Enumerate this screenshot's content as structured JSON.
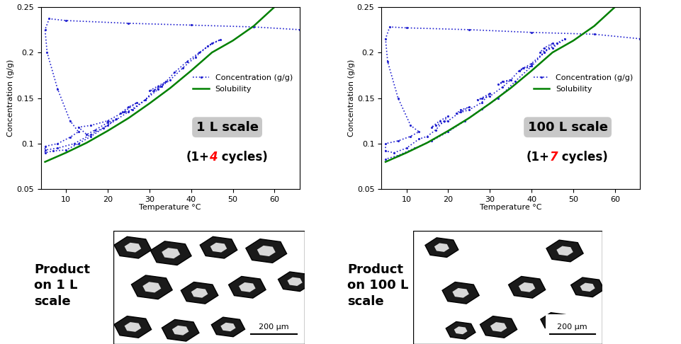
{
  "chart_data": [
    {
      "type": "line",
      "xlabel": "Temperature °C",
      "ylabel": "Concentration (g/g)",
      "xlim": [
        4,
        66
      ],
      "ylim": [
        0.05,
        0.25
      ],
      "xticks": [
        10,
        20,
        30,
        40,
        50,
        60
      ],
      "yticks": [
        0.05,
        0.1,
        0.15,
        0.2,
        0.25
      ],
      "legend": "center right",
      "annotations": [
        "1 L scale"
      ],
      "annotation_parts": [
        "(1+",
        "4",
        " cycles)"
      ],
      "series": [
        {
          "name": "Concentration (g/g)",
          "color": "#2020d0",
          "line_style": "dotted",
          "marker": "dot",
          "x": [
            66,
            55,
            40,
            25,
            10,
            6,
            5,
            5.5,
            8,
            11,
            13,
            11,
            8,
            5,
            5,
            7,
            10,
            13,
            16,
            19,
            22,
            20,
            17,
            15,
            13,
            16,
            20,
            24,
            27,
            25,
            23,
            26,
            29,
            31,
            34,
            32,
            30,
            32,
            35,
            38,
            41,
            44,
            47,
            45,
            42,
            39,
            36,
            33,
            29,
            25,
            20,
            16,
            12,
            8,
            5
          ],
          "values": [
            0.225,
            0.228,
            0.23,
            0.232,
            0.235,
            0.237,
            0.225,
            0.2,
            0.16,
            0.125,
            0.113,
            0.107,
            0.1,
            0.097,
            0.09,
            0.092,
            0.093,
            0.1,
            0.108,
            0.117,
            0.127,
            0.123,
            0.115,
            0.11,
            0.118,
            0.12,
            0.125,
            0.135,
            0.145,
            0.14,
            0.133,
            0.137,
            0.148,
            0.158,
            0.168,
            0.163,
            0.158,
            0.16,
            0.17,
            0.183,
            0.195,
            0.207,
            0.214,
            0.21,
            0.2,
            0.19,
            0.178,
            0.163,
            0.148,
            0.135,
            0.12,
            0.11,
            0.1,
            0.095,
            0.093
          ]
        },
        {
          "name": "Solubility",
          "color": "#008000",
          "line_style": "solid",
          "x": [
            5,
            10,
            15,
            20,
            25,
            30,
            35,
            40,
            45,
            50,
            55,
            60
          ],
          "values": [
            0.08,
            0.09,
            0.101,
            0.114,
            0.128,
            0.144,
            0.161,
            0.18,
            0.2,
            0.213,
            0.229,
            0.25
          ]
        }
      ]
    },
    {
      "type": "line",
      "xlabel": "Temperature °C",
      "ylabel": "Concentration (g/g)",
      "xlim": [
        4,
        66
      ],
      "ylim": [
        0.05,
        0.25
      ],
      "xticks": [
        10,
        20,
        30,
        40,
        50,
        60
      ],
      "yticks": [
        0.05,
        0.1,
        0.15,
        0.2,
        0.25
      ],
      "legend": "center right",
      "annotations": [
        "100 L scale"
      ],
      "annotation_parts": [
        "(1+",
        "7",
        " cycles)"
      ],
      "series": [
        {
          "name": "Concentration (g/g)",
          "color": "#2020d0",
          "line_style": "dotted",
          "marker": "dot",
          "x": [
            66,
            55,
            40,
            25,
            10,
            6,
            5,
            5.5,
            8,
            11,
            13,
            11,
            8,
            5,
            5,
            7,
            10,
            13,
            15,
            17,
            19,
            20,
            18,
            16,
            17,
            20,
            23,
            25,
            23,
            22,
            25,
            28,
            30,
            28,
            27,
            30,
            33,
            35,
            33,
            32,
            35,
            37,
            40,
            38,
            37,
            40,
            43,
            45,
            43,
            42,
            45,
            48,
            46,
            43,
            40,
            36,
            32,
            28,
            24,
            20,
            16,
            12,
            8,
            5
          ],
          "values": [
            0.215,
            0.22,
            0.222,
            0.225,
            0.227,
            0.228,
            0.215,
            0.19,
            0.15,
            0.12,
            0.113,
            0.108,
            0.103,
            0.1,
            0.092,
            0.09,
            0.095,
            0.105,
            0.108,
            0.115,
            0.125,
            0.13,
            0.125,
            0.118,
            0.12,
            0.125,
            0.135,
            0.14,
            0.137,
            0.133,
            0.137,
            0.145,
            0.155,
            0.15,
            0.148,
            0.152,
            0.162,
            0.17,
            0.168,
            0.165,
            0.17,
            0.18,
            0.185,
            0.183,
            0.18,
            0.188,
            0.2,
            0.21,
            0.205,
            0.2,
            0.205,
            0.215,
            0.21,
            0.2,
            0.185,
            0.168,
            0.15,
            0.138,
            0.125,
            0.113,
            0.103,
            0.095,
            0.087,
            0.083
          ]
        },
        {
          "name": "Solubility",
          "color": "#008000",
          "line_style": "solid",
          "x": [
            5,
            10,
            15,
            20,
            25,
            30,
            35,
            40,
            45,
            50,
            55,
            60
          ],
          "values": [
            0.08,
            0.09,
            0.101,
            0.114,
            0.128,
            0.144,
            0.161,
            0.18,
            0.2,
            0.213,
            0.229,
            0.25
          ]
        }
      ]
    }
  ],
  "images": [
    {
      "caption": "Product\non 1 L\nscale",
      "scale_bar": "200 µm"
    },
    {
      "caption": "Product\non 100 L\nscale",
      "scale_bar": "200 µm"
    }
  ]
}
